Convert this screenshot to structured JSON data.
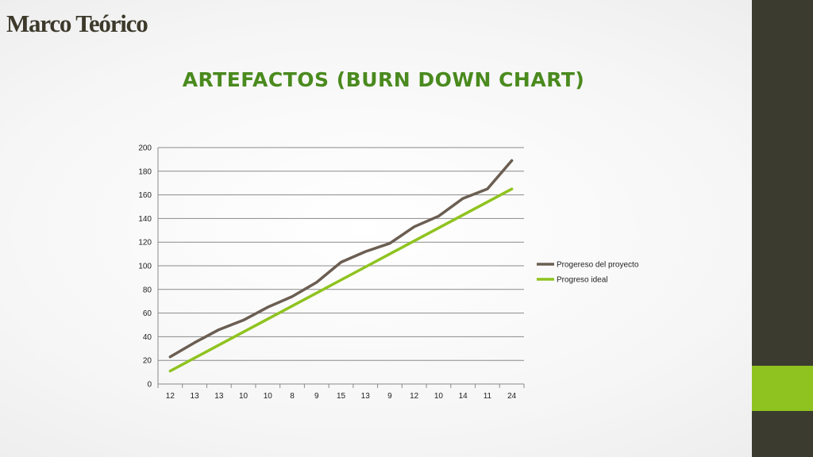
{
  "slide": {
    "title": "Marco Teórico"
  },
  "theme": {
    "sidebar_color": "#3c3b2f",
    "accent_color": "#8fc31f",
    "title_color": "#4a8a1e"
  },
  "chart_data": {
    "type": "line",
    "title": "ARTEFACTOS (BURN DOWN CHART)",
    "xlabel": "",
    "ylabel": "",
    "categories": [
      "12",
      "13",
      "13",
      "10",
      "10",
      "8",
      "9",
      "15",
      "13",
      "9",
      "12",
      "10",
      "14",
      "11",
      "24"
    ],
    "yticks": [
      0,
      20,
      40,
      60,
      80,
      100,
      120,
      140,
      160,
      180,
      200
    ],
    "ylim": [
      0,
      200
    ],
    "grid": true,
    "legend_position": "right",
    "series": [
      {
        "name": "Progereso del proyecto",
        "color": "#6b5e52",
        "values": [
          23,
          35,
          46,
          54,
          65,
          74,
          86,
          103,
          112,
          119,
          133,
          142,
          157,
          165,
          189
        ]
      },
      {
        "name": "Progreso ideal",
        "color": "#8fc31f",
        "values": [
          11,
          22,
          33,
          44,
          55,
          66,
          77,
          88,
          99,
          110,
          121,
          132,
          143,
          154,
          165
        ]
      }
    ]
  }
}
